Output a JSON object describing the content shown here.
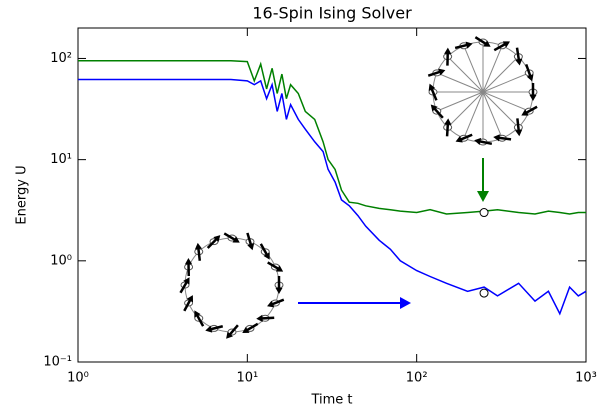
{
  "chart_data": {
    "type": "line",
    "title": "16-Spin Ising Solver",
    "xlabel": "Time t",
    "ylabel": "Energy U",
    "xscale": "log",
    "yscale": "log",
    "xlim": [
      1,
      1000
    ],
    "ylim": [
      0.1,
      200
    ],
    "xticks": [
      {
        "value": 1,
        "label": "10⁰"
      },
      {
        "value": 10,
        "label": "10¹"
      },
      {
        "value": 100,
        "label": "10²"
      },
      {
        "value": 1000,
        "label": "10³"
      }
    ],
    "yticks": [
      {
        "value": 0.1,
        "label": "10⁻¹"
      },
      {
        "value": 1,
        "label": "10⁰"
      },
      {
        "value": 10,
        "label": "10¹"
      },
      {
        "value": 100,
        "label": "10²"
      }
    ],
    "x": [
      1,
      2,
      3,
      5,
      8,
      10,
      11,
      12,
      13,
      14,
      15,
      16,
      17,
      18,
      20,
      22,
      25,
      28,
      30,
      33,
      36,
      40,
      45,
      50,
      60,
      70,
      80,
      100,
      120,
      150,
      200,
      250,
      300,
      400,
      500,
      600,
      700,
      800,
      900,
      1000
    ],
    "series": [
      {
        "color": "#008000",
        "values": [
          95,
          95,
          95,
          95,
          95,
          93,
          60,
          88,
          50,
          80,
          45,
          70,
          40,
          55,
          45,
          30,
          25,
          15,
          10,
          8,
          5,
          3.8,
          3.7,
          3.5,
          3.3,
          3.2,
          3.1,
          3.0,
          3.2,
          2.9,
          3.0,
          3.1,
          3.2,
          3.0,
          2.9,
          3.1,
          3.0,
          2.9,
          3.0,
          3.0
        ]
      },
      {
        "color": "#0000ff",
        "values": [
          62,
          62,
          62,
          62,
          62,
          60,
          55,
          60,
          40,
          55,
          30,
          45,
          25,
          35,
          25,
          20,
          15,
          12,
          8,
          6,
          4,
          3.5,
          2.8,
          2.2,
          1.6,
          1.3,
          1.0,
          0.8,
          0.7,
          0.6,
          0.5,
          0.55,
          0.45,
          0.6,
          0.4,
          0.5,
          0.3,
          0.55,
          0.45,
          0.5
        ]
      }
    ],
    "markers": {
      "x": [
        250,
        250
      ],
      "y": [
        3.0,
        0.48
      ]
    }
  }
}
